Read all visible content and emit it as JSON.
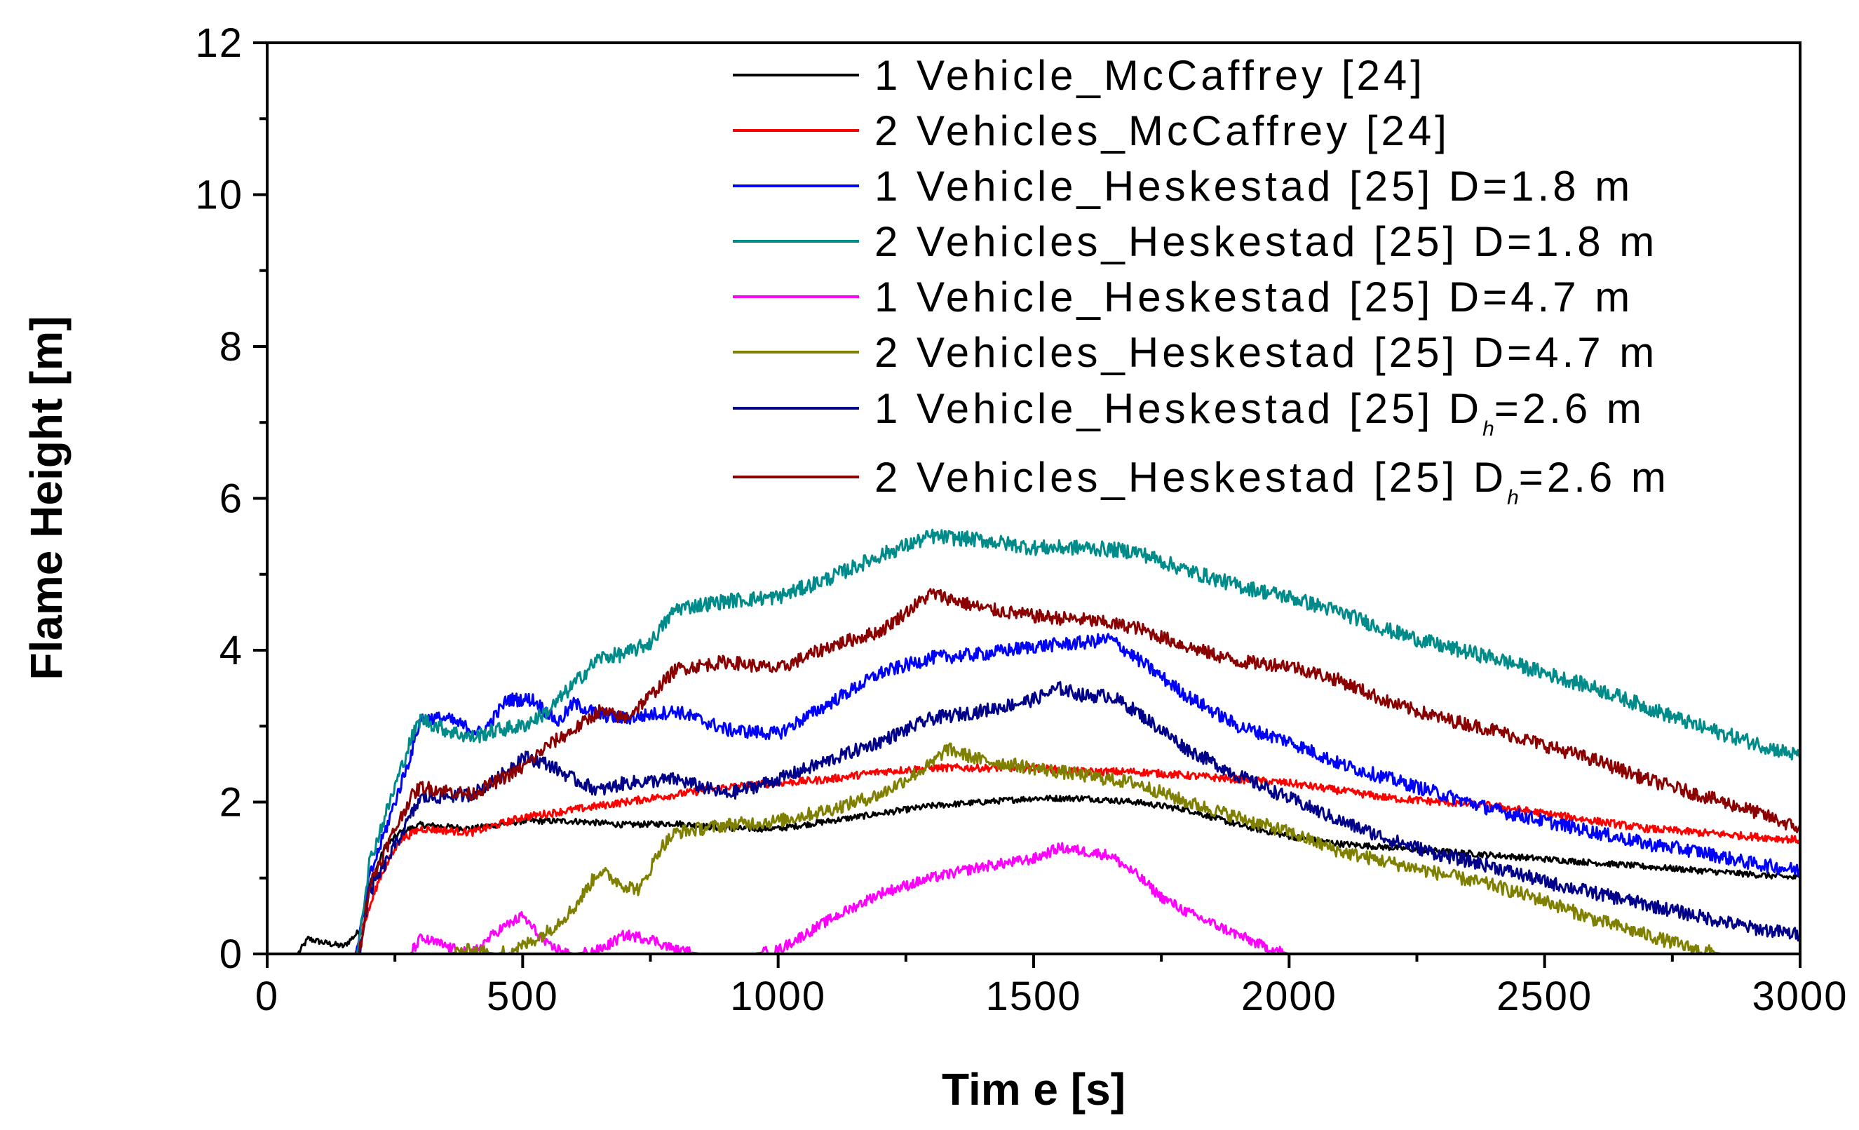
{
  "chart_data": {
    "type": "line",
    "title": "",
    "xlabel": "Tim e [s]",
    "ylabel": "Flame Height [m]",
    "xlim": [
      0,
      3000
    ],
    "ylim": [
      0,
      12
    ],
    "xticks": [
      0,
      500,
      1000,
      1500,
      2000,
      2500,
      3000
    ],
    "yticks": [
      0,
      2,
      4,
      6,
      8,
      10,
      12
    ],
    "xtick_labels": [
      "0",
      "500",
      "1000",
      "1500",
      "2000",
      "2500",
      "3000"
    ],
    "ytick_labels": [
      "0",
      "2",
      "4",
      "6",
      "8",
      "10",
      "12"
    ],
    "grid": false,
    "legend_position": "top-right",
    "series": [
      {
        "name": "1 Vehicle_McCaffrey [24]",
        "label_main": "1 Vehicle_McCaffrey [24]",
        "label_sub": "",
        "label_tail": "",
        "color": "#000000",
        "noise": 0.04,
        "x": [
          0,
          60,
          80,
          110,
          150,
          180,
          200,
          230,
          260,
          300,
          400,
          500,
          600,
          700,
          800,
          900,
          1000,
          1100,
          1200,
          1300,
          1400,
          1500,
          1600,
          1700,
          1800,
          1900,
          2000,
          2100,
          2200,
          2300,
          2400,
          2500,
          2600,
          2700,
          2800,
          2900,
          3000
        ],
        "y": [
          0,
          0,
          0.2,
          0.15,
          0.1,
          0.3,
          0.9,
          1.4,
          1.6,
          1.7,
          1.65,
          1.75,
          1.75,
          1.7,
          1.72,
          1.65,
          1.65,
          1.75,
          1.85,
          1.95,
          2.0,
          2.05,
          2.05,
          2.0,
          1.9,
          1.7,
          1.55,
          1.45,
          1.4,
          1.35,
          1.3,
          1.25,
          1.2,
          1.15,
          1.1,
          1.05,
          1.0
        ]
      },
      {
        "name": "2 Vehicles_McCaffrey [24]",
        "label_main": "2 Vehicles_McCaffrey [24]",
        "label_sub": "",
        "label_tail": "",
        "color": "#ff0000",
        "noise": 0.05,
        "x": [
          0,
          170,
          190,
          220,
          260,
          300,
          400,
          500,
          600,
          700,
          800,
          900,
          1000,
          1100,
          1200,
          1300,
          1400,
          1500,
          1600,
          1700,
          1800,
          1900,
          2000,
          2100,
          2200,
          2300,
          2400,
          2500,
          2600,
          2700,
          2800,
          2900,
          3000
        ],
        "y": [
          0,
          0,
          0.4,
          1.0,
          1.5,
          1.65,
          1.6,
          1.8,
          1.9,
          2.0,
          2.1,
          2.2,
          2.25,
          2.3,
          2.4,
          2.45,
          2.45,
          2.45,
          2.4,
          2.4,
          2.35,
          2.3,
          2.25,
          2.15,
          2.05,
          2.0,
          1.95,
          1.85,
          1.75,
          1.65,
          1.6,
          1.55,
          1.5
        ]
      },
      {
        "name": "1 Vehicle_Heskestad [25] D=1.8 m",
        "label_main": "1 Vehicle_Heskestad [25] D=1.8 m",
        "label_sub": "",
        "label_tail": "",
        "color": "#0000ff",
        "noise": 0.09,
        "x": [
          0,
          175,
          200,
          240,
          280,
          300,
          350,
          420,
          470,
          520,
          570,
          600,
          650,
          700,
          750,
          800,
          900,
          1000,
          1100,
          1200,
          1300,
          1400,
          1500,
          1600,
          1650,
          1700,
          1800,
          1900,
          2000,
          2100,
          2200,
          2300,
          2400,
          2500,
          2600,
          2700,
          2800,
          2900,
          3000
        ],
        "y": [
          0,
          0,
          1.0,
          1.8,
          2.6,
          3.1,
          3.1,
          2.9,
          3.35,
          3.35,
          3.05,
          3.3,
          3.15,
          3.1,
          3.15,
          3.2,
          2.95,
          2.9,
          3.3,
          3.7,
          3.9,
          3.95,
          4.05,
          4.1,
          4.15,
          3.9,
          3.4,
          3.0,
          2.8,
          2.5,
          2.3,
          2.1,
          1.9,
          1.75,
          1.6,
          1.45,
          1.35,
          1.2,
          1.1
        ]
      },
      {
        "name": "2 Vehicles_Heskestad [25] D=1.8 m",
        "label_main": "2 Vehicles_Heskestad [25] D=1.8 m",
        "label_sub": "",
        "label_tail": "",
        "color": "#008b8b",
        "noise": 0.1,
        "x": [
          0,
          175,
          200,
          240,
          280,
          300,
          350,
          400,
          450,
          500,
          550,
          600,
          650,
          700,
          750,
          800,
          900,
          1000,
          1100,
          1200,
          1300,
          1400,
          1500,
          1600,
          1700,
          1800,
          1900,
          2000,
          2100,
          2200,
          2300,
          2400,
          2500,
          2600,
          2700,
          2800,
          2900,
          3000
        ],
        "y": [
          0,
          0,
          1.2,
          2.0,
          2.8,
          3.1,
          2.95,
          2.85,
          2.95,
          3.0,
          3.2,
          3.55,
          3.9,
          3.95,
          4.1,
          4.55,
          4.65,
          4.7,
          4.95,
          5.25,
          5.5,
          5.45,
          5.35,
          5.35,
          5.3,
          5.05,
          4.85,
          4.7,
          4.5,
          4.25,
          4.05,
          3.9,
          3.7,
          3.5,
          3.25,
          3.0,
          2.8,
          2.6
        ]
      },
      {
        "name": "1 Vehicle_Heskestad [25] D=4.7 m",
        "label_main": "1 Vehicle_Heskestad [25] D=4.7 m",
        "label_sub": "",
        "label_tail": "",
        "color": "#ff00ff",
        "noise": 0.07,
        "x": [
          280,
          300,
          330,
          370,
          400,
          450,
          500,
          550,
          600,
          650,
          700,
          750,
          800,
          850,
          900,
          950,
          1000,
          1100,
          1200,
          1300,
          1400,
          1500,
          1550,
          1600,
          1650,
          1700,
          1750,
          1800,
          1850,
          1900,
          1950,
          2000
        ],
        "y": [
          0,
          0.2,
          0.15,
          0.05,
          0,
          0.3,
          0.5,
          0.1,
          0,
          0.05,
          0.25,
          0.2,
          0.05,
          0,
          0,
          0,
          0.05,
          0.45,
          0.8,
          1.0,
          1.15,
          1.25,
          1.4,
          1.35,
          1.3,
          1.05,
          0.75,
          0.55,
          0.4,
          0.25,
          0.1,
          0
        ]
      },
      {
        "name": "2 Vehicles_Heskestad [25] D=4.7 m",
        "label_main": "2 Vehicles_Heskestad [25] D=4.7 m",
        "label_sub": "",
        "label_tail": "",
        "color": "#808000",
        "noise": 0.09,
        "x": [
          300,
          350,
          400,
          450,
          500,
          550,
          600,
          650,
          700,
          730,
          770,
          800,
          900,
          1000,
          1100,
          1200,
          1250,
          1300,
          1330,
          1400,
          1500,
          1600,
          1700,
          1800,
          1900,
          2000,
          2100,
          2200,
          2300,
          2400,
          2500,
          2600,
          2700,
          2750,
          2800,
          2850
        ],
        "y": [
          0,
          0,
          0.05,
          0,
          0.1,
          0.3,
          0.6,
          1.1,
          0.9,
          0.85,
          1.4,
          1.6,
          1.7,
          1.75,
          1.9,
          2.1,
          2.3,
          2.5,
          2.7,
          2.55,
          2.45,
          2.35,
          2.25,
          2.0,
          1.8,
          1.6,
          1.35,
          1.2,
          1.05,
          0.9,
          0.7,
          0.45,
          0.25,
          0.15,
          0.05,
          0
        ]
      },
      {
        "name": "1 Vehicle_Heskestad [25] Dh=2.6 m",
        "label_main": "1 Vehicle_Heskestad [25] D",
        "label_sub": "h",
        "label_tail": "=2.6 m",
        "color": "#00008b",
        "noise": 0.09,
        "x": [
          0,
          180,
          200,
          240,
          280,
          300,
          400,
          450,
          500,
          550,
          600,
          650,
          700,
          800,
          900,
          1000,
          1100,
          1200,
          1300,
          1400,
          1500,
          1550,
          1600,
          1650,
          1700,
          1800,
          1900,
          2000,
          2100,
          2200,
          2300,
          2400,
          2500,
          2600,
          2700,
          2800,
          2900,
          3000
        ],
        "y": [
          0,
          0,
          0.8,
          1.3,
          1.8,
          2.05,
          2.1,
          2.3,
          2.6,
          2.5,
          2.3,
          2.15,
          2.25,
          2.3,
          2.1,
          2.3,
          2.55,
          2.8,
          3.1,
          3.2,
          3.35,
          3.5,
          3.4,
          3.4,
          3.2,
          2.7,
          2.35,
          2.05,
          1.75,
          1.5,
          1.3,
          1.15,
          0.95,
          0.8,
          0.65,
          0.5,
          0.35,
          0.25
        ]
      },
      {
        "name": "2 Vehicles_Heskestad [25] Dh=2.6 m",
        "label_main": "2 Vehicles_Heskestad [25] D",
        "label_sub": "h",
        "label_tail": "=2.6 m",
        "color": "#8b0000",
        "noise": 0.09,
        "x": [
          0,
          180,
          200,
          240,
          280,
          300,
          400,
          500,
          550,
          600,
          650,
          700,
          750,
          800,
          900,
          1000,
          1100,
          1200,
          1250,
          1300,
          1350,
          1400,
          1500,
          1600,
          1700,
          1800,
          1900,
          2000,
          2100,
          2200,
          2300,
          2400,
          2500,
          2600,
          2700,
          2800,
          2900,
          3000
        ],
        "y": [
          0,
          0,
          0.9,
          1.5,
          2.05,
          2.2,
          2.1,
          2.45,
          2.75,
          2.95,
          3.2,
          3.1,
          3.4,
          3.75,
          3.85,
          3.75,
          4.05,
          4.25,
          4.5,
          4.75,
          4.65,
          4.55,
          4.45,
          4.4,
          4.3,
          4.05,
          3.85,
          3.8,
          3.6,
          3.3,
          3.1,
          2.95,
          2.75,
          2.55,
          2.3,
          2.1,
          1.9,
          1.65
        ]
      }
    ]
  }
}
